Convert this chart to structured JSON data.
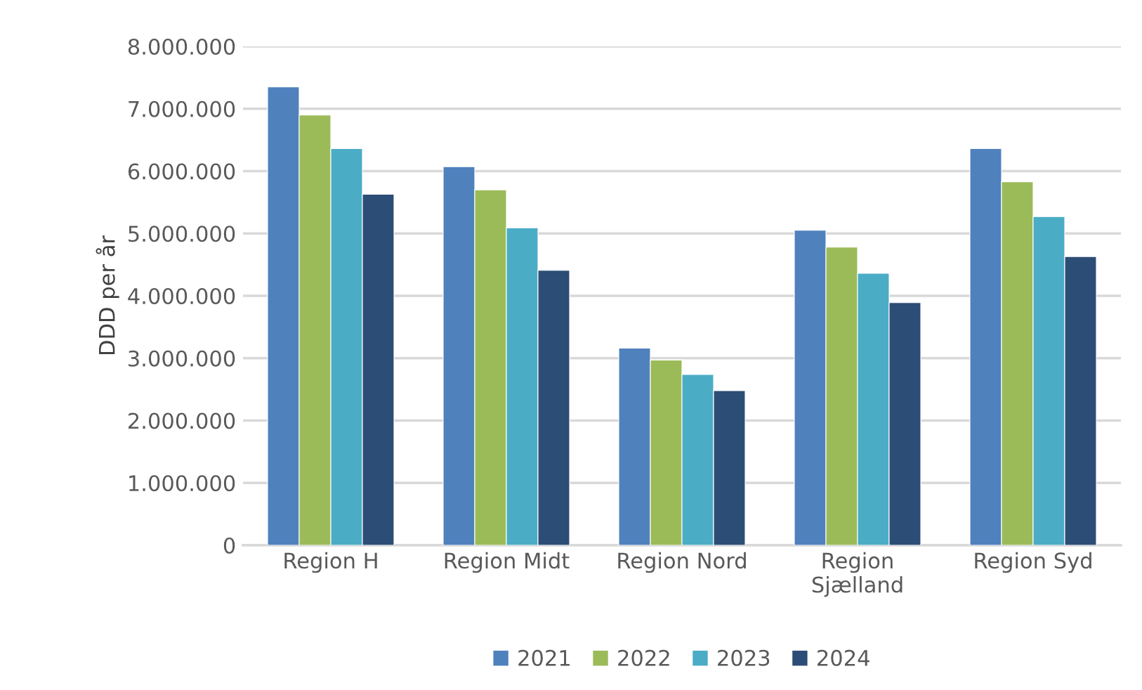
{
  "chart_data": {
    "type": "bar",
    "ylabel": "DDD per år",
    "categories": [
      "Region H",
      "Region Midt",
      "Region Nord",
      "Region\nSjælland",
      "Region Syd"
    ],
    "series": [
      {
        "name": "2021",
        "color": "#4f81bd",
        "values": [
          7350000,
          6070000,
          3160000,
          5050000,
          6360000
        ]
      },
      {
        "name": "2022",
        "color": "#9bbb59",
        "values": [
          6900000,
          5700000,
          2970000,
          4780000,
          5830000
        ]
      },
      {
        "name": "2023",
        "color": "#4bacc6",
        "values": [
          6360000,
          5090000,
          2740000,
          4360000,
          5270000
        ]
      },
      {
        "name": "2024",
        "color": "#2c4d75",
        "values": [
          5630000,
          4410000,
          2480000,
          3890000,
          4630000
        ]
      }
    ],
    "ylim": [
      0,
      8000000
    ],
    "yticks": [
      {
        "value": 0,
        "label": "0"
      },
      {
        "value": 1000000,
        "label": "1.000.000"
      },
      {
        "value": 2000000,
        "label": "2.000.000"
      },
      {
        "value": 3000000,
        "label": "3.000.000"
      },
      {
        "value": 4000000,
        "label": "4.000.000"
      },
      {
        "value": 5000000,
        "label": "5.000.000"
      },
      {
        "value": 6000000,
        "label": "6.000.000"
      },
      {
        "value": 7000000,
        "label": "7.000.000"
      },
      {
        "value": 8000000,
        "label": "8.000.000"
      }
    ],
    "grid": "y",
    "legend": "bottom"
  }
}
